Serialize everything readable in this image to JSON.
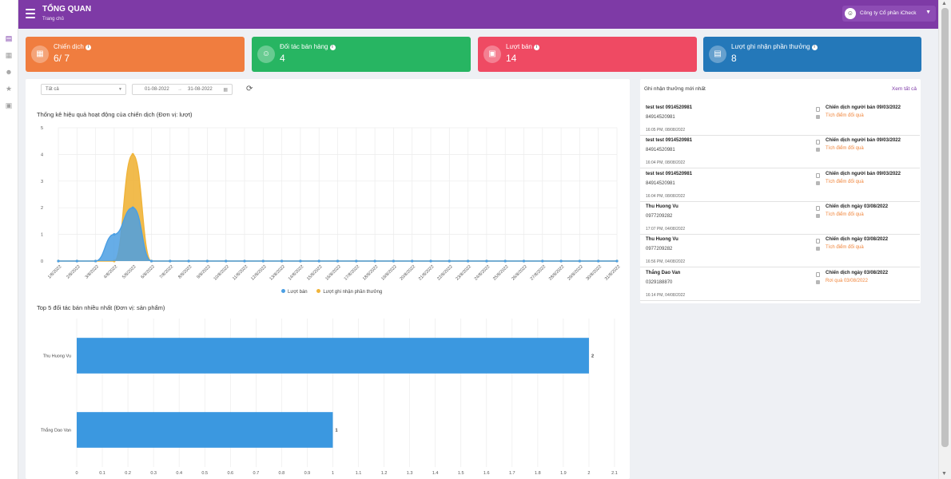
{
  "header": {
    "title": "TỔNG QUAN",
    "breadcrumb": "Trang chủ",
    "company": "Công ty Cổ phần iCheck"
  },
  "stats": [
    {
      "label": "Chiến dịch",
      "value": "6/ 7",
      "color": "#f07d3f",
      "icon": "campaign-icon"
    },
    {
      "label": "Đối tác bán hàng",
      "value": "4",
      "color": "#27b562",
      "icon": "partner-icon"
    },
    {
      "label": "Lượt bán",
      "value": "14",
      "color": "#ef4a63",
      "icon": "gift-icon"
    },
    {
      "label": "Lượt ghi nhận phần thưởng",
      "value": "8",
      "color": "#2478b9",
      "icon": "clipboard-icon"
    }
  ],
  "filters": {
    "select_value": "Tất cả",
    "date_from": "01-08-2022",
    "date_separator": "→",
    "date_to": "31-08-2022"
  },
  "activity_chart_title": "Thống kê hiệu quả hoạt động của chiến dịch (Đơn vị: lượt)",
  "partners_chart_title": "Top 5 đối tác bán nhiều nhất (Đơn vị: sản phẩm)",
  "chart_data": [
    {
      "type": "area",
      "x": [
        "1/8/2022",
        "2/8/2022",
        "3/8/2022",
        "4/8/2022",
        "5/8/2022",
        "6/8/2022",
        "7/8/2022",
        "8/8/2022",
        "9/8/2022",
        "10/8/2022",
        "11/8/2022",
        "12/8/2022",
        "13/8/2022",
        "14/8/2022",
        "15/8/2022",
        "16/8/2022",
        "17/8/2022",
        "18/8/2022",
        "19/8/2022",
        "20/8/2022",
        "21/8/2022",
        "22/8/2022",
        "23/8/2022",
        "24/8/2022",
        "25/8/2022",
        "26/8/2022",
        "27/8/2022",
        "28/8/2022",
        "29/8/2022",
        "30/8/2022",
        "31/8/2022"
      ],
      "series": [
        {
          "name": "Lượt bán",
          "color": "#4b9fe3",
          "values": [
            0,
            0,
            0,
            1,
            2,
            0,
            0,
            0,
            0,
            0,
            0,
            0,
            0,
            0,
            0,
            0,
            0,
            0,
            0,
            0,
            0,
            0,
            0,
            0,
            0,
            0,
            0,
            0,
            0,
            0,
            0
          ]
        },
        {
          "name": "Lượt ghi nhận phần thưởng",
          "color": "#f0b43a",
          "values": [
            0,
            0,
            0,
            0,
            4,
            0,
            0,
            0,
            0,
            0,
            0,
            0,
            0,
            0,
            0,
            0,
            0,
            0,
            0,
            0,
            0,
            0,
            0,
            0,
            0,
            0,
            0,
            0,
            0,
            0,
            0
          ]
        }
      ],
      "y_ticks": [
        "0",
        "1",
        "2",
        "3",
        "4",
        "5"
      ],
      "ylim": [
        0,
        5
      ],
      "grid": true,
      "legend": "bottom"
    },
    {
      "type": "bar",
      "orientation": "horizontal",
      "categories": [
        "Thu Huong Vu",
        "Thắng Dao Van"
      ],
      "values": [
        2,
        1
      ],
      "color": "#3b98e0",
      "x_ticks": [
        "0",
        "0.1",
        "0.2",
        "0.3",
        "0.4",
        "0.5",
        "0.6",
        "0.7",
        "0.8",
        "0.9",
        "1",
        "1.1",
        "1.2",
        "1.3",
        "1.4",
        "1.5",
        "1.6",
        "1.7",
        "1.8",
        "1.9",
        "2",
        "2.1"
      ],
      "xlim": [
        0,
        2.1
      ],
      "grid": true
    }
  ],
  "rewards": {
    "title": "Ghi nhận thưởng mới nhất",
    "see_all": "Xem tất cả",
    "items": [
      {
        "name": "test test 0914520981",
        "phone": "84914520981",
        "time": "16:05 PM, 08/08/2022",
        "campaign": "Chiến dịch người bán 09/03/2022",
        "type": "Tích điểm đổi quà"
      },
      {
        "name": "test test 0914520981",
        "phone": "84914520981",
        "time": "16:04 PM, 08/08/2022",
        "campaign": "Chiến dịch người bán 09/03/2022",
        "type": "Tích điểm đổi quà"
      },
      {
        "name": "test test 0914520981",
        "phone": "84914520981",
        "time": "16:04 PM, 08/08/2022",
        "campaign": "Chiến dịch người bán 09/03/2022",
        "type": "Tích điểm đổi quà"
      },
      {
        "name": "Thu Huong Vu",
        "phone": "0977209282",
        "time": "17:07 PM, 04/08/2022",
        "campaign": "Chiến dịch ngày 03/08/2022",
        "type": "Tích điểm đổi quà"
      },
      {
        "name": "Thu Huong Vu",
        "phone": "0977209282",
        "time": "16:56 PM, 04/08/2022",
        "campaign": "Chiến dịch ngày 03/08/2022",
        "type": "Tích điểm đổi quà"
      },
      {
        "name": "Thắng Dao Van",
        "phone": "0329188870",
        "time": "16:14 PM, 04/08/2022",
        "campaign": "Chiến dịch ngày 03/08/2022",
        "type": "Rơi quà 03/08/2022"
      }
    ]
  }
}
